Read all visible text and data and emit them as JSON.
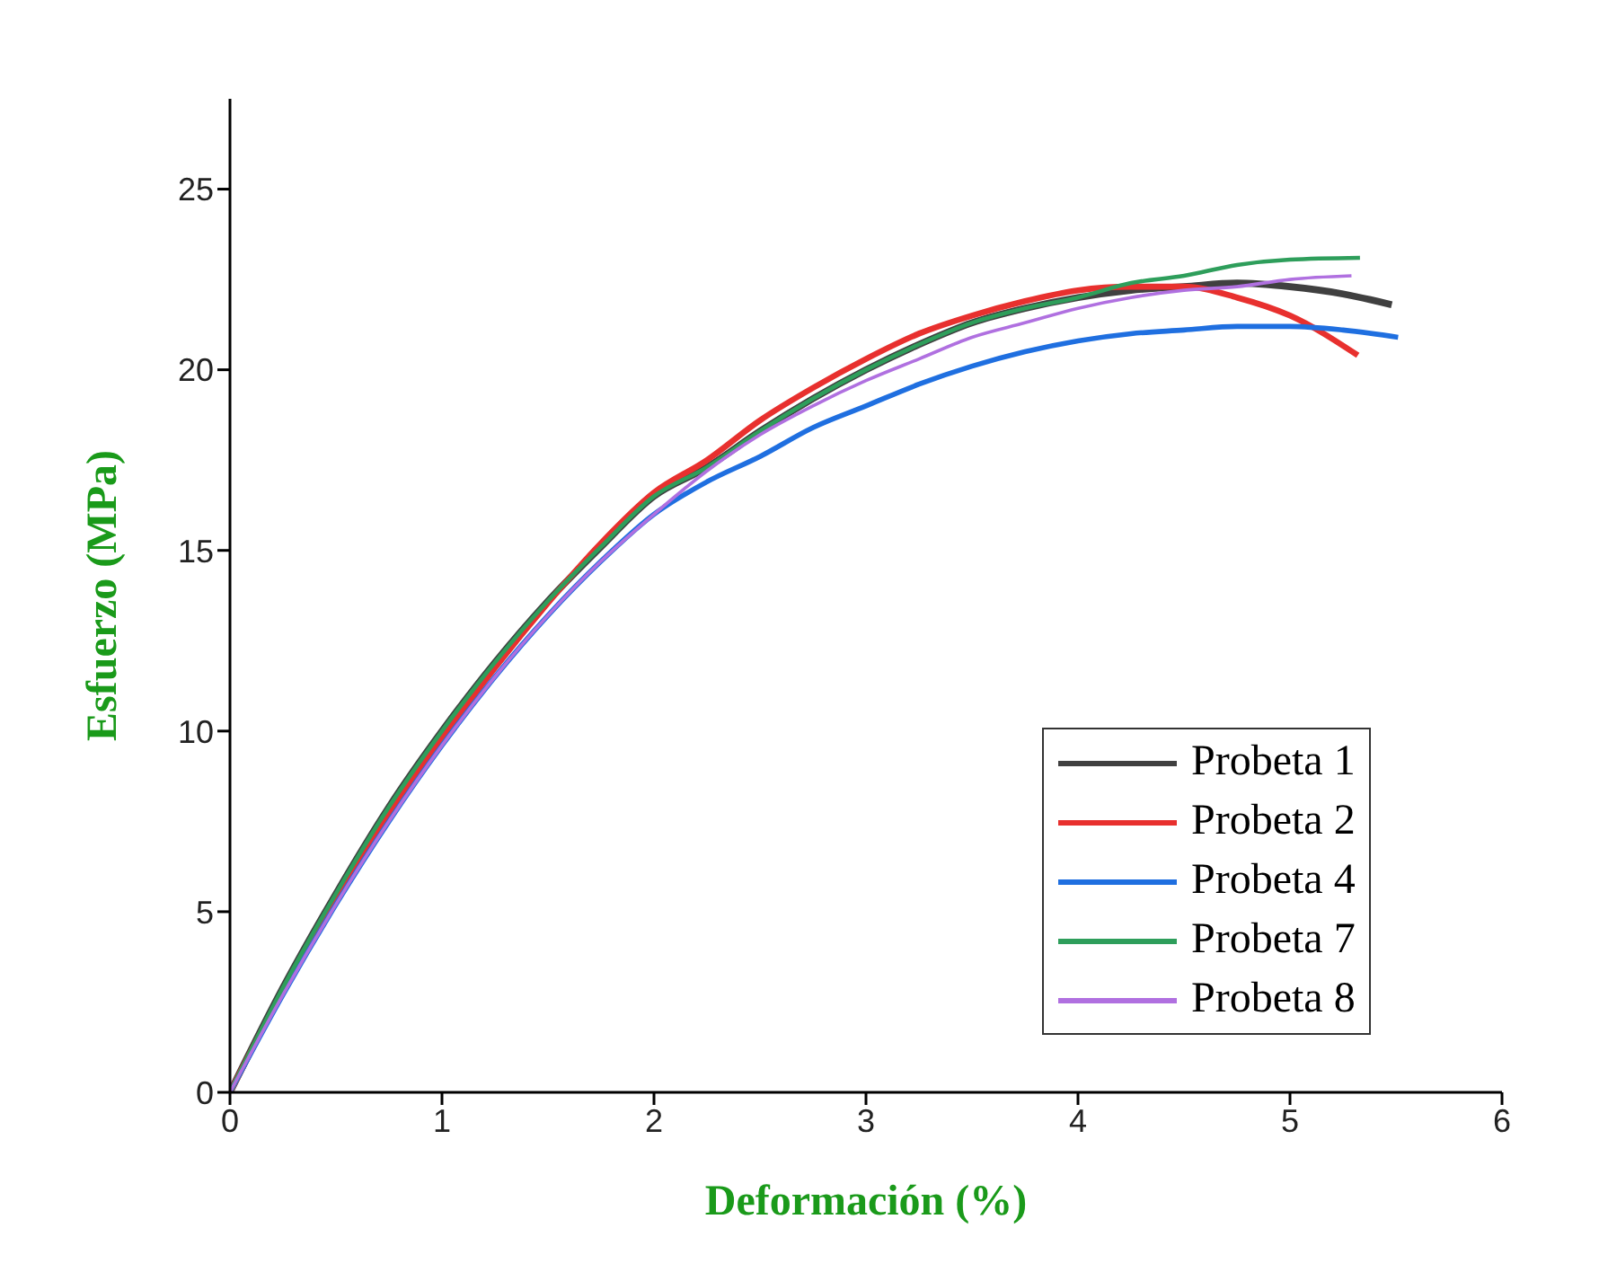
{
  "chart_data": {
    "type": "line",
    "xlabel": "Deformación (%)",
    "ylabel": "Esfuerzo (MPa)",
    "xlim": [
      0,
      6
    ],
    "xticks": [
      0,
      1,
      2,
      3,
      4,
      5,
      6
    ],
    "ylim": [
      0,
      27.5
    ],
    "yticks": [
      0,
      5,
      10,
      15,
      20,
      25
    ],
    "grid": false,
    "legend": "bottom right",
    "marker": "none",
    "line_style": "solid",
    "series": [
      {
        "name": "Probeta 1",
        "color": "#404040",
        "x": [
          0,
          0.25,
          0.5,
          0.75,
          1,
          1.25,
          1.5,
          1.75,
          2,
          2.25,
          2.5,
          2.75,
          3,
          3.25,
          3.5,
          3.75,
          4,
          4.25,
          4.5,
          4.75,
          5,
          5.25,
          5.48
        ],
        "values": [
          0,
          2.9,
          5.5,
          7.9,
          10.0,
          11.9,
          13.6,
          15.1,
          16.5,
          17.3,
          18.3,
          19.2,
          20.0,
          20.7,
          21.3,
          21.7,
          22.0,
          22.2,
          22.3,
          22.4,
          22.3,
          22.1,
          21.8
        ]
      },
      {
        "name": "Probeta 2",
        "color": "#e8302e",
        "x": [
          0,
          0.25,
          0.5,
          0.75,
          1,
          1.25,
          1.5,
          1.75,
          2,
          2.25,
          2.5,
          2.75,
          3,
          3.25,
          3.5,
          3.75,
          4,
          4.25,
          4.5,
          4.75,
          5,
          5.32
        ],
        "values": [
          0,
          2.8,
          5.35,
          7.7,
          9.8,
          11.75,
          13.55,
          15.2,
          16.6,
          17.5,
          18.6,
          19.5,
          20.3,
          21.0,
          21.5,
          21.9,
          22.2,
          22.3,
          22.3,
          22.0,
          21.5,
          20.4
        ]
      },
      {
        "name": "Probeta 4",
        "color": "#1f6fe0",
        "x": [
          0,
          0.25,
          0.5,
          0.75,
          1,
          1.25,
          1.5,
          1.75,
          2,
          2.25,
          2.5,
          2.75,
          3,
          3.25,
          3.5,
          3.75,
          4,
          4.25,
          4.5,
          4.75,
          5,
          5.25,
          5.51
        ],
        "values": [
          0,
          2.7,
          5.2,
          7.5,
          9.6,
          11.5,
          13.2,
          14.7,
          16.0,
          16.9,
          17.6,
          18.4,
          19.0,
          19.6,
          20.1,
          20.5,
          20.8,
          21.0,
          21.1,
          21.2,
          21.2,
          21.1,
          20.9
        ]
      },
      {
        "name": "Probeta 7",
        "color": "#2e9e5b",
        "x": [
          0,
          0.25,
          0.5,
          0.75,
          1,
          1.25,
          1.5,
          1.75,
          2,
          2.25,
          2.5,
          2.75,
          3,
          3.25,
          3.5,
          3.75,
          4,
          4.25,
          4.5,
          4.75,
          5,
          5.33
        ],
        "values": [
          0,
          2.9,
          5.5,
          7.9,
          10.0,
          11.9,
          13.6,
          15.1,
          16.5,
          17.3,
          18.3,
          19.2,
          20.0,
          20.7,
          21.3,
          21.7,
          22.0,
          22.4,
          22.6,
          22.9,
          23.05,
          23.1
        ]
      },
      {
        "name": "Probeta 8",
        "color": "#b070e0",
        "x": [
          0,
          0.25,
          0.5,
          0.75,
          1,
          1.25,
          1.5,
          1.75,
          2,
          2.25,
          2.5,
          2.75,
          3,
          3.25,
          3.5,
          3.75,
          4,
          4.25,
          4.5,
          4.75,
          5,
          5.29
        ],
        "values": [
          0,
          2.7,
          5.2,
          7.5,
          9.6,
          11.5,
          13.2,
          14.7,
          16.0,
          17.2,
          18.2,
          19.0,
          19.7,
          20.3,
          20.9,
          21.3,
          21.7,
          22.0,
          22.2,
          22.3,
          22.5,
          22.6
        ]
      }
    ]
  }
}
